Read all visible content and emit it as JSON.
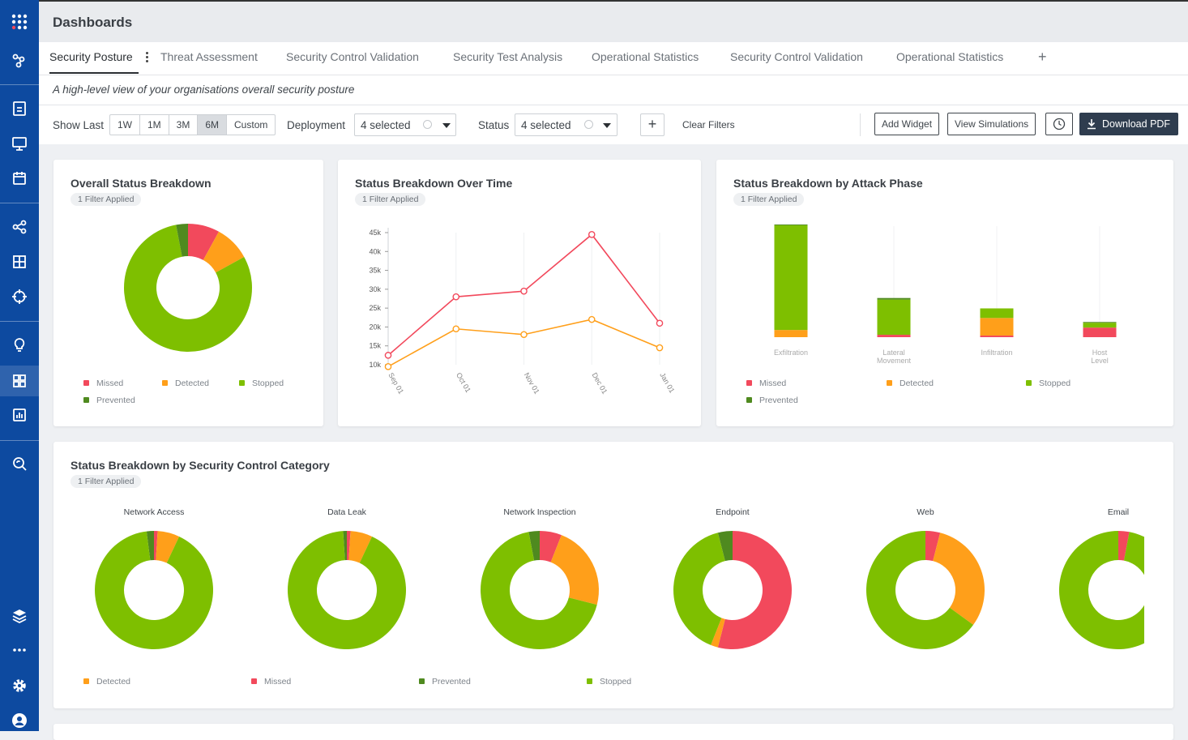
{
  "header": {
    "title": "Dashboards"
  },
  "tabs": [
    {
      "label": "Security Posture",
      "active": true
    },
    {
      "label": "Threat Assessment"
    },
    {
      "label": "Security Control Validation"
    },
    {
      "label": "Security Test Analysis"
    },
    {
      "label": "Operational Statistics"
    },
    {
      "label": "Security Control Validation"
    },
    {
      "label": "Operational Statistics"
    }
  ],
  "tab_add": "+",
  "subtitle": "A high-level view of your organisations overall security posture",
  "filters": {
    "show_last_label": "Show Last",
    "ranges": [
      "1W",
      "1M",
      "3M",
      "6M",
      "Custom"
    ],
    "selected_range": "6M",
    "deployment_label": "Deployment",
    "deployment_value": "4 selected",
    "status_label": "Status",
    "status_value": "4 selected",
    "add_filter": "+",
    "clear_filters": "Clear Filters"
  },
  "toolbar": {
    "add_widget": "Add Widget",
    "view_simulations": "View Simulations",
    "download_pdf": "Download PDF"
  },
  "colors": {
    "missed": "#f2495c",
    "detected": "#ff9f1a",
    "stopped": "#7ebf00",
    "prevented": "#4f8a1f",
    "sidebar": "#0d4aa0"
  },
  "sidebar_icons": [
    "apps-grid-icon",
    "graph-nodes-icon",
    "report-icon",
    "monitor-icon",
    "calendar-icon",
    "share-nodes-icon",
    "grid-icon",
    "crosshair-icon",
    "lightbulb-icon",
    "dashboard-icon",
    "bar-chart-icon",
    "search-refresh-icon",
    "layers-icon",
    "more-icon",
    "gear-icon",
    "user-icon"
  ],
  "cards": {
    "overall": {
      "title": "Overall Status Breakdown",
      "badge": "1 Filter Applied",
      "legend": [
        "Missed",
        "Detected",
        "Stopped",
        "Prevented"
      ]
    },
    "over_time": {
      "title": "Status Breakdown Over Time",
      "badge": "1 Filter Applied"
    },
    "attack_phase": {
      "title": "Status Breakdown by Attack Phase",
      "badge": "1 Filter Applied",
      "legend": [
        "Missed",
        "Detected",
        "Stopped",
        "Prevented"
      ]
    },
    "control_category": {
      "title": "Status Breakdown by Security Control Category",
      "badge": "1 Filter Applied",
      "legend": [
        "Detected",
        "Missed",
        "Prevented",
        "Stopped"
      ]
    }
  },
  "chart_data": [
    {
      "type": "pie",
      "title": "Overall Status Breakdown",
      "categories": [
        "Missed",
        "Detected",
        "Stopped",
        "Prevented"
      ],
      "values": [
        8,
        9,
        80,
        3
      ]
    },
    {
      "type": "line",
      "title": "Status Breakdown Over Time",
      "x": [
        "Sep 01",
        "Oct 01",
        "Nov 01",
        "Dec 01",
        "Jan 01"
      ],
      "yticks": [
        "10k",
        "15k",
        "20k",
        "25k",
        "30k",
        "35k",
        "40k",
        "45k"
      ],
      "ylim": [
        10000,
        45000
      ],
      "series": [
        {
          "values": [
            12500,
            28000,
            29500,
            44500,
            21000
          ],
          "color": "#f2495c"
        },
        {
          "values": [
            9500,
            19500,
            18000,
            22000,
            14500
          ],
          "color": "#ff9f1a"
        }
      ]
    },
    {
      "type": "bar",
      "title": "Status Breakdown by Attack Phase",
      "categories": [
        "Exfiltration",
        "Lateral Movement",
        "Infiltration",
        "Host Level"
      ],
      "series": [
        {
          "name": "Missed",
          "values": [
            0,
            3,
            2,
            12
          ]
        },
        {
          "name": "Detected",
          "values": [
            9,
            0,
            22,
            0
          ]
        },
        {
          "name": "Stopped",
          "values": [
            131,
            44,
            12,
            6
          ]
        },
        {
          "name": "Prevented",
          "values": [
            1,
            2,
            0,
            1
          ]
        }
      ],
      "ylim": [
        0,
        145
      ]
    },
    {
      "type": "pie",
      "title": "Status Breakdown by Security Control Category",
      "charts": [
        {
          "label": "Network Access",
          "values": {
            "Detected": 6,
            "Missed": 1,
            "Prevented": 2,
            "Stopped": 91
          }
        },
        {
          "label": "Data Leak",
          "values": {
            "Detected": 6,
            "Missed": 1,
            "Prevented": 1,
            "Stopped": 92
          }
        },
        {
          "label": "Network Inspection",
          "values": {
            "Detected": 23,
            "Missed": 6,
            "Prevented": 3,
            "Stopped": 68
          }
        },
        {
          "label": "Endpoint",
          "values": {
            "Detected": 2,
            "Missed": 54,
            "Prevented": 4,
            "Stopped": 40
          }
        },
        {
          "label": "Web",
          "values": {
            "Detected": 31,
            "Missed": 4,
            "Prevented": 0,
            "Stopped": 65
          }
        },
        {
          "label": "Email",
          "values": {
            "Detected": 0,
            "Missed": 3,
            "Prevented": 0,
            "Stopped": 97
          }
        }
      ]
    }
  ]
}
